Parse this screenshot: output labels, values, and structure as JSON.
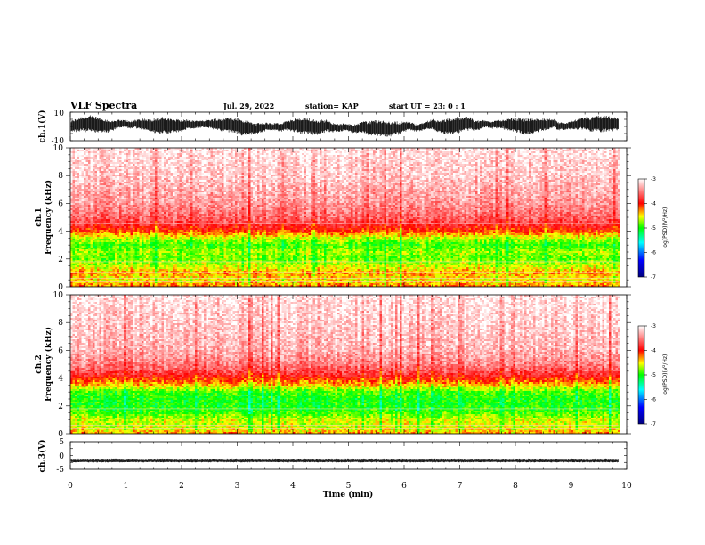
{
  "header": {
    "title": "VLF Spectra",
    "date": "Jul. 29, 2022",
    "station": "station= KAP",
    "start": "start  UT =  23: 0  : 1"
  },
  "chart_data": [
    {
      "type": "line",
      "panel": "ch1_waveform",
      "ylabel": "ch.1(V)",
      "ylim": [
        -10,
        10
      ],
      "yticks": [
        "10",
        "-10"
      ],
      "xlim": [
        0,
        10
      ],
      "data_extent": [
        0,
        9.85
      ],
      "series": [
        {
          "values_description": "dense broadband waveform, roughly -6 to 6 V"
        }
      ],
      "color": "#000000"
    },
    {
      "type": "heatmap",
      "panel": "ch1_spectrogram",
      "ylabel": "ch.1",
      "ylabel2": "Frequency  (kHz)",
      "ylim": [
        0,
        10
      ],
      "yticks": [
        "0",
        "2",
        "4",
        "6",
        "8",
        "10"
      ],
      "xlim": [
        0,
        10
      ],
      "data_extent": [
        0,
        9.85
      ],
      "band_profile": [
        {
          "f": 0.0,
          "level": -4.2
        },
        {
          "f": 0.5,
          "level": -4.5
        },
        {
          "f": 1.0,
          "level": -4.3
        },
        {
          "f": 1.5,
          "level": -4.6
        },
        {
          "f": 2.0,
          "level": -4.8
        },
        {
          "f": 2.5,
          "level": -4.7
        },
        {
          "f": 3.0,
          "level": -4.9
        },
        {
          "f": 3.5,
          "level": -4.6
        },
        {
          "f": 4.0,
          "level": -4.1
        },
        {
          "f": 4.5,
          "level": -3.8
        },
        {
          "f": 5.0,
          "level": -3.6
        },
        {
          "f": 6.0,
          "level": -3.4
        },
        {
          "f": 8.0,
          "level": -3.2
        },
        {
          "f": 10.0,
          "level": -3.1
        }
      ]
    },
    {
      "type": "heatmap",
      "panel": "ch2_spectrogram",
      "ylabel": "ch.2",
      "ylabel2": "Frequency  (kHz)",
      "ylim": [
        0,
        10
      ],
      "yticks": [
        "0",
        "2",
        "4",
        "6",
        "8",
        "10"
      ],
      "xlim": [
        0,
        10
      ],
      "data_extent": [
        0,
        9.85
      ],
      "band_profile": [
        {
          "f": 0.0,
          "level": -4.3
        },
        {
          "f": 0.5,
          "level": -4.6
        },
        {
          "f": 1.0,
          "level": -4.6
        },
        {
          "f": 1.5,
          "level": -4.9
        },
        {
          "f": 2.0,
          "level": -5.0
        },
        {
          "f": 2.5,
          "level": -5.0
        },
        {
          "f": 3.0,
          "level": -4.9
        },
        {
          "f": 3.5,
          "level": -4.4
        },
        {
          "f": 4.0,
          "level": -4.0
        },
        {
          "f": 4.5,
          "level": -3.7
        },
        {
          "f": 5.0,
          "level": -3.5
        },
        {
          "f": 6.0,
          "level": -3.3
        },
        {
          "f": 8.0,
          "level": -3.2
        },
        {
          "f": 10.0,
          "level": -3.1
        }
      ]
    },
    {
      "type": "line",
      "panel": "ch3_waveform",
      "ylabel": "ch.3(V)",
      "ylim": [
        -5,
        5
      ],
      "yticks": [
        "5",
        "0",
        "-5"
      ],
      "xlim": [
        0,
        10
      ],
      "data_extent": [
        0,
        9.85
      ],
      "series": [
        {
          "values_description": "near-constant trace at about -1.8 V with small oscillation"
        }
      ],
      "color": "#000000"
    }
  ],
  "x_axis": {
    "label": "Time  (min)",
    "ticks": [
      "0",
      "1",
      "2",
      "3",
      "4",
      "5",
      "6",
      "7",
      "8",
      "9",
      "10"
    ],
    "range": [
      0,
      10
    ]
  },
  "colorbar": {
    "label": "log(PSD)(V²/Hz)",
    "ticks": [
      "-3",
      "-4",
      "-5",
      "-6",
      "-7"
    ],
    "range": [
      -7,
      -3
    ],
    "stops": [
      "#00007f",
      "#0000ff",
      "#00ff00",
      "#ffff00",
      "#ff0000",
      "#ffffff"
    ]
  }
}
